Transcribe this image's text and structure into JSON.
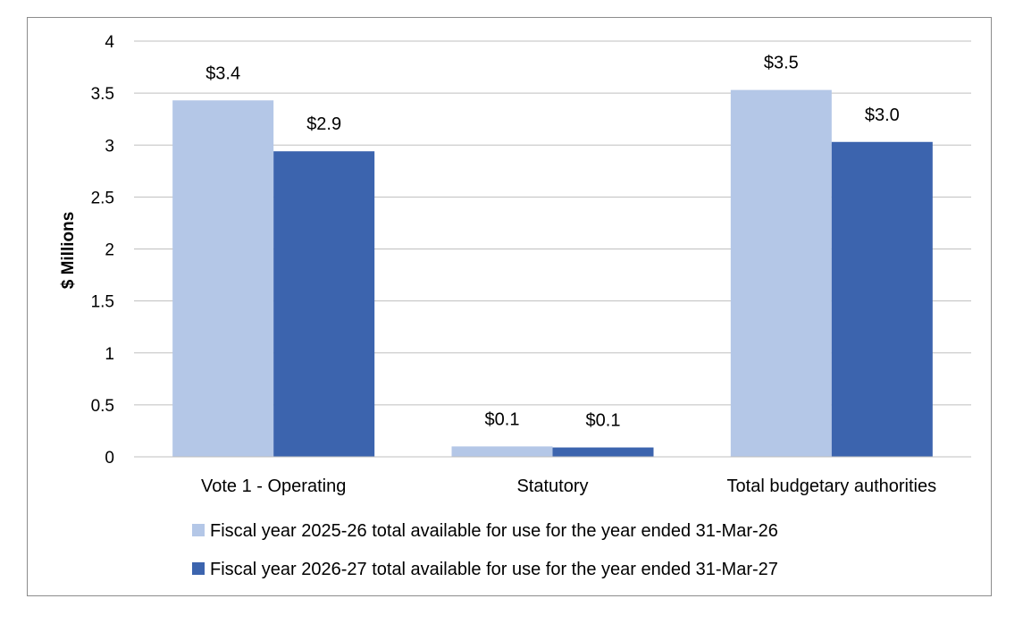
{
  "chart_data": {
    "type": "bar",
    "title": "",
    "xlabel": "",
    "ylabel": "$ Millions",
    "ylim": [
      0,
      4
    ],
    "yticks": [
      "0",
      "0.5",
      "1",
      "1.5",
      "2",
      "2.5",
      "3",
      "3.5",
      "4"
    ],
    "grid": true,
    "legend_position": "bottom",
    "categories": [
      "Vote 1 - Operating",
      "Statutory",
      "Total budgetary authorities"
    ],
    "series": [
      {
        "name": "Fiscal year 2025-26 total available for use for the year ended 31-Mar-26",
        "color": "#b4c7e7",
        "values": [
          3.43,
          0.1,
          3.53
        ],
        "labels": [
          "$3.4",
          "$0.1",
          "$3.5"
        ]
      },
      {
        "name": "Fiscal year 2026-27 total available for use for the year ended 31-Mar-27",
        "color": "#3c64ae",
        "values": [
          2.94,
          0.09,
          3.03
        ],
        "labels": [
          "$2.9",
          "$0.1",
          "$3.0"
        ]
      }
    ]
  }
}
